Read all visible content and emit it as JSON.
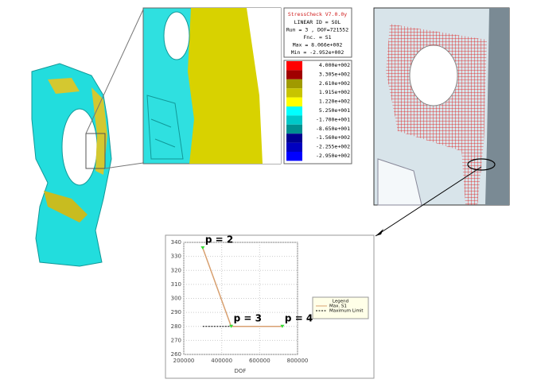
{
  "info_panel": {
    "title": "StressCheck V7.0.0y",
    "lines": [
      "LINEAR ID = SOL",
      "Run = 3 , DOF=721552",
      "Fnc. = S1",
      "Max =  8.066e+002",
      "Min = -2.952e+002"
    ]
  },
  "colorbar": {
    "labels": [
      "4.000e+002",
      "3.305e+002",
      "2.610e+002",
      "1.915e+002",
      "1.220e+002",
      "5.250e+001",
      "-1.700e+001",
      "-8.650e+001",
      "-1.560e+002",
      "-2.255e+002",
      "-2.950e+002"
    ],
    "colors": [
      "#ff0000",
      "#a00000",
      "#a09a00",
      "#c8c400",
      "#ffff00",
      "#00ffff",
      "#00c8c8",
      "#009090",
      "#000090",
      "#0000c0",
      "#0000ff"
    ]
  },
  "chart_data": {
    "type": "line",
    "xlabel": "DOF",
    "x": [
      300000,
      450000,
      720000
    ],
    "series": [
      {
        "name": "Max. S1",
        "color": "#d8a070",
        "marker_color": "#33dd33",
        "values": [
          336,
          280,
          280
        ]
      },
      {
        "name": "Maximum Limit",
        "color": "#000000",
        "dashed": true,
        "values": [
          280,
          280,
          280
        ]
      }
    ],
    "annotations": [
      "p = 2",
      "p = 3",
      "p = 4"
    ],
    "legend_title": "Legend",
    "xlim": [
      200000,
      800000
    ],
    "xticks": [
      200000,
      400000,
      600000,
      800000
    ],
    "ylim": [
      260,
      340
    ],
    "yticks": [
      260,
      270,
      280,
      290,
      300,
      310,
      320,
      330,
      340
    ],
    "grid": true
  }
}
